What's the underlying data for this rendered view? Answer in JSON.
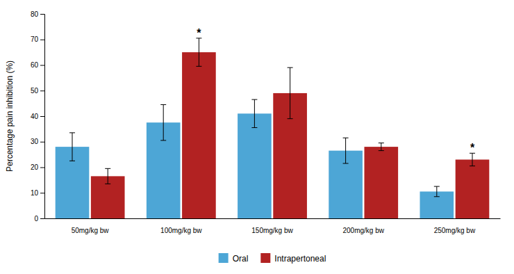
{
  "chart_data": {
    "type": "bar",
    "categories": [
      "50mg/kg bw",
      "100mg/kg bw",
      "150mg/kg bw",
      "200mg/kg bw",
      "250mg/kg bw"
    ],
    "series": [
      {
        "name": "Oral",
        "color": "#4DA6D6",
        "values": [
          28,
          37.5,
          41,
          26.5,
          10.5
        ],
        "errors": [
          5.5,
          7,
          5.5,
          5,
          2
        ]
      },
      {
        "name": "Intrapertoneal",
        "color": "#B22222",
        "values": [
          16.5,
          65,
          49,
          28,
          23
        ],
        "errors": [
          3,
          5.5,
          10,
          1.5,
          2.5
        ]
      }
    ],
    "ylabel": "Percentage pain inhibition (%)",
    "ylim": [
      0,
      80
    ],
    "yticks": [
      0,
      10,
      20,
      30,
      40,
      50,
      60,
      70,
      80
    ],
    "annotations": [
      {
        "text": "*",
        "category": "100mg/kg bw",
        "series": "Intrapertoneal"
      },
      {
        "text": "*",
        "category": "250mg/kg bw",
        "series": "Intrapertoneal"
      }
    ],
    "grid": false,
    "legend": "bottom"
  }
}
